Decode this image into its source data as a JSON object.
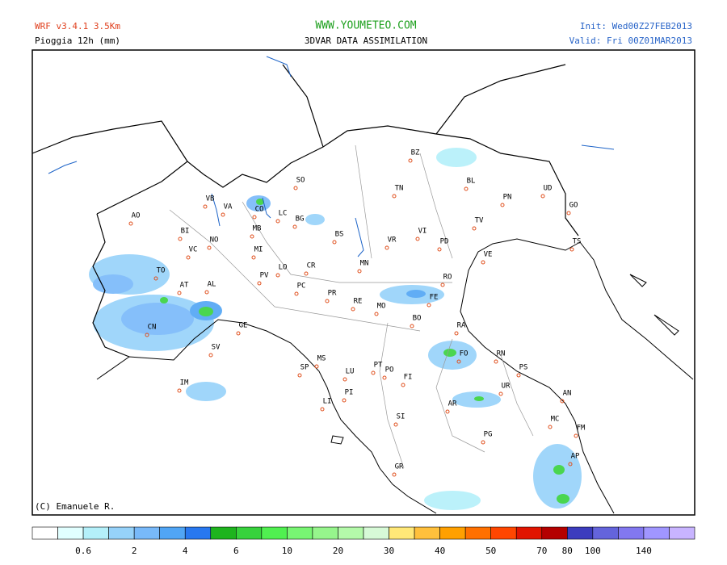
{
  "header": {
    "model": "WRF v3.4.1 3.5Km",
    "variable": "Pioggia 12h (mm)",
    "site": "WWW.YOUMETEO.COM",
    "subtitle": "3DVAR DATA ASSIMILATION",
    "init": "Init: Wed00Z27FEB2013",
    "valid": "Valid: Fri  00Z01MAR2013"
  },
  "credit": "(C) Emanuele R.",
  "cities": [
    "AO",
    "BI",
    "VB",
    "VA",
    "CO",
    "LC",
    "SO",
    "BZ",
    "BL",
    "TN",
    "PN",
    "UD",
    "GO",
    "TS",
    "NO",
    "MB",
    "BG",
    "BS",
    "VR",
    "VI",
    "TV",
    "PD",
    "VE",
    "VC",
    "MI",
    "TO",
    "LO",
    "CR",
    "MN",
    "PV",
    "PC",
    "RO",
    "AT",
    "AL",
    "PR",
    "RE",
    "MO",
    "FE",
    "BO",
    "CN",
    "GE",
    "RA",
    "FO",
    "RN",
    "SV",
    "MS",
    "SP",
    "PT",
    "PO",
    "FI",
    "PS",
    "LU",
    "UR",
    "PI",
    "IM",
    "LI",
    "AN",
    "AR",
    "SI",
    "MC",
    "FM",
    "PG",
    "AP",
    "GR"
  ],
  "legend": {
    "labels": [
      0.6,
      2,
      4,
      6,
      10,
      20,
      30,
      40,
      50,
      70,
      80,
      100,
      140
    ],
    "colors": [
      "#ffffff",
      "#e1ffff",
      "#b4f0fa",
      "#96d2fa",
      "#78b9fa",
      "#50a5f5",
      "#2878f0",
      "#1eb41e",
      "#37d23c",
      "#50f050",
      "#78f573",
      "#96f58c",
      "#b4faaa",
      "#d7fad7",
      "#ffe878",
      "#ffc03c",
      "#ffa000",
      "#ff7000",
      "#ff4600",
      "#e11400",
      "#b40000",
      "#3c3cbe",
      "#6464dc",
      "#8278f0",
      "#a096ff",
      "#c8b4ff"
    ]
  }
}
